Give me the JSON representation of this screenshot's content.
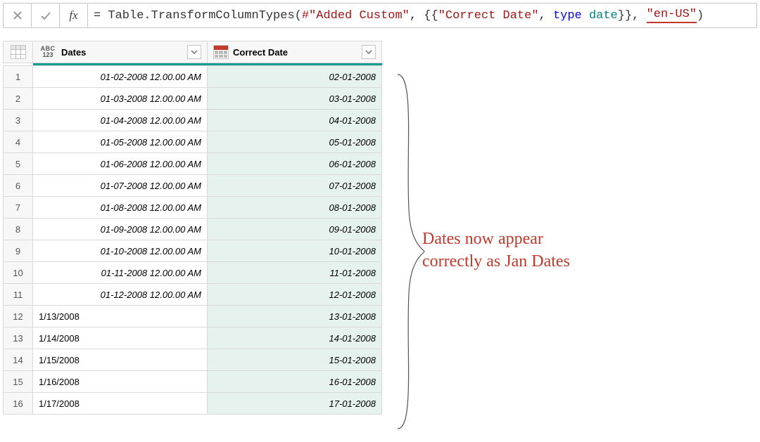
{
  "formula": {
    "eq": "= ",
    "fn": "Table.TransformColumnTypes",
    "open": "(",
    "step_ref": "#\"Added Custom\"",
    "comma1": ", {{",
    "col_name": "\"Correct Date\"",
    "comma2": ", ",
    "kw_type": "type",
    "space1": " ",
    "type_date": "date",
    "close_inner": "}}, ",
    "locale": "\"en-US\"",
    "close": ")"
  },
  "formula_bar": {
    "fx_label": "fx"
  },
  "headers": {
    "dates": "Dates",
    "correct_date": "Correct Date",
    "abc": "ABC",
    "n123": "123"
  },
  "rows": [
    {
      "n": "1",
      "dates": "01-02-2008 12.00.00 AM",
      "plain": false,
      "cdate": "02-01-2008"
    },
    {
      "n": "2",
      "dates": "01-03-2008 12.00.00 AM",
      "plain": false,
      "cdate": "03-01-2008"
    },
    {
      "n": "3",
      "dates": "01-04-2008 12.00.00 AM",
      "plain": false,
      "cdate": "04-01-2008"
    },
    {
      "n": "4",
      "dates": "01-05-2008 12.00.00 AM",
      "plain": false,
      "cdate": "05-01-2008"
    },
    {
      "n": "5",
      "dates": "01-06-2008 12.00.00 AM",
      "plain": false,
      "cdate": "06-01-2008"
    },
    {
      "n": "6",
      "dates": "01-07-2008 12.00.00 AM",
      "plain": false,
      "cdate": "07-01-2008"
    },
    {
      "n": "7",
      "dates": "01-08-2008 12.00.00 AM",
      "plain": false,
      "cdate": "08-01-2008"
    },
    {
      "n": "8",
      "dates": "01-09-2008 12.00.00 AM",
      "plain": false,
      "cdate": "09-01-2008"
    },
    {
      "n": "9",
      "dates": "01-10-2008 12.00.00 AM",
      "plain": false,
      "cdate": "10-01-2008"
    },
    {
      "n": "10",
      "dates": "01-11-2008 12.00.00 AM",
      "plain": false,
      "cdate": "11-01-2008"
    },
    {
      "n": "11",
      "dates": "01-12-2008 12.00.00 AM",
      "plain": false,
      "cdate": "12-01-2008"
    },
    {
      "n": "12",
      "dates": "1/13/2008",
      "plain": true,
      "cdate": "13-01-2008"
    },
    {
      "n": "13",
      "dates": "1/14/2008",
      "plain": true,
      "cdate": "14-01-2008"
    },
    {
      "n": "14",
      "dates": "1/15/2008",
      "plain": true,
      "cdate": "15-01-2008"
    },
    {
      "n": "15",
      "dates": "1/16/2008",
      "plain": true,
      "cdate": "16-01-2008"
    },
    {
      "n": "16",
      "dates": "1/17/2008",
      "plain": true,
      "cdate": "17-01-2008"
    }
  ],
  "annotation": {
    "line1": "Dates now appear",
    "line2": "correctly as Jan Dates",
    "color": "#c0392b",
    "font": "Comic Sans MS",
    "fontsize": 24
  },
  "colors": {
    "teal": "#0f9d8f",
    "mint_bg": "#e6f2ee",
    "header_bg": "#f7f7f7",
    "border": "#d9d9d9",
    "formula_string": "#a31515",
    "formula_keyword": "#0000ff",
    "formula_type": "#008080",
    "underline": "#c0392b"
  }
}
